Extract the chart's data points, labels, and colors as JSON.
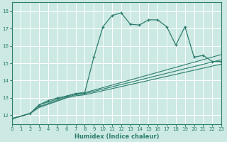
{
  "xlabel": "Humidex (Indice chaleur)",
  "bg_color": "#cce9e4",
  "grid_color": "#b0d8d0",
  "line_color": "#2e7d6e",
  "ylim": [
    11.5,
    18.5
  ],
  "xlim": [
    0,
    23
  ],
  "yticks": [
    12,
    13,
    14,
    15,
    16,
    17,
    18
  ],
  "xticks": [
    0,
    1,
    2,
    3,
    4,
    5,
    6,
    7,
    8,
    9,
    10,
    11,
    12,
    13,
    14,
    15,
    16,
    17,
    18,
    19,
    20,
    21,
    22,
    23
  ],
  "series1_x": [
    0,
    2,
    3,
    4,
    5,
    6,
    7,
    8,
    9,
    10,
    11,
    12,
    13,
    14,
    15,
    16,
    17,
    18,
    19,
    20,
    21,
    22,
    23
  ],
  "series1_y": [
    11.8,
    12.1,
    12.6,
    12.85,
    13.0,
    13.1,
    13.25,
    13.3,
    15.35,
    17.1,
    17.75,
    17.9,
    17.25,
    17.2,
    17.5,
    17.5,
    17.1,
    16.05,
    17.1,
    15.35,
    15.45,
    15.1,
    15.1
  ],
  "series2_x": [
    0,
    2,
    3,
    6,
    7,
    8,
    23
  ],
  "series2_y": [
    11.8,
    12.1,
    12.6,
    13.1,
    13.25,
    13.3,
    15.5
  ],
  "series3_x": [
    0,
    2,
    3,
    6,
    7,
    8,
    23
  ],
  "series3_y": [
    11.8,
    12.1,
    12.5,
    13.05,
    13.18,
    13.25,
    15.2
  ],
  "series4_x": [
    0,
    2,
    3,
    6,
    7,
    8,
    23
  ],
  "series4_y": [
    11.8,
    12.1,
    12.45,
    13.0,
    13.12,
    13.18,
    14.95
  ]
}
